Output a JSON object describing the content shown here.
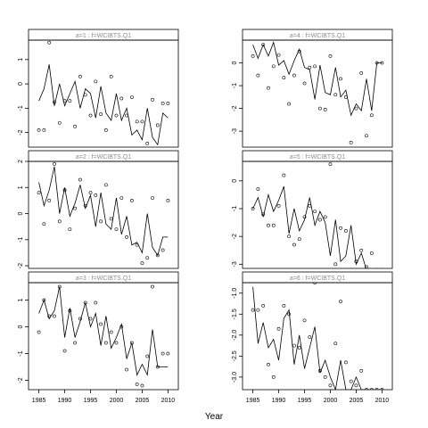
{
  "chart_data": {
    "type": "line",
    "xlabel": "Year",
    "panels": [
      {
        "strip": "a=1  :  f=WCIBTS.Q1",
        "xlim": [
          1983,
          2012
        ],
        "ylim": [
          -2.6,
          1.8
        ],
        "yticks": [
          -2,
          -1,
          0,
          1
        ],
        "ytick_labels": [
          "-2",
          "-1",
          "0",
          "1"
        ],
        "line": {
          "x": [
            1985,
            1986,
            1987,
            1988,
            1989,
            1990,
            1991,
            1992,
            1993,
            1994,
            1995,
            1996,
            1997,
            1998,
            1999,
            2000,
            2001,
            2002,
            2003,
            2004,
            2005,
            2006,
            2007,
            2008,
            2009,
            2010
          ],
          "y": [
            -0.7,
            -0.2,
            0.8,
            -0.9,
            0.0,
            -0.9,
            -0.4,
            0.1,
            -1.0,
            -0.2,
            -0.4,
            -1.4,
            -0.1,
            -1.2,
            -1.5,
            -0.4,
            -1.5,
            -1.0,
            -2.1,
            -1.9,
            -2.3,
            -1.0,
            -2.2,
            -2.5,
            -1.2,
            -1.4
          ]
        },
        "points": {
          "x": [
            1985,
            1986,
            1987,
            1988,
            1989,
            1990,
            1991,
            1992,
            1993,
            1994,
            1995,
            1996,
            1997,
            1998,
            1999,
            2000,
            2001,
            2002,
            2003,
            2004,
            2005,
            2006,
            2007,
            2008,
            2009,
            2010
          ],
          "y": [
            -1.9,
            -1.9,
            1.7,
            -0.75,
            -1.6,
            -0.7,
            -0.7,
            -1.75,
            0.3,
            -0.45,
            -1.3,
            0.1,
            -1.25,
            -1.9,
            0.3,
            -1.3,
            -0.6,
            -1.3,
            -0.55,
            -1.55,
            -1.55,
            -2.45,
            -0.65,
            -1.7,
            -0.8,
            -0.8
          ]
        }
      },
      {
        "strip": "a=4  :  f=WCIBTS.Q1",
        "xlim": [
          1983,
          2012
        ],
        "ylim": [
          -3.7,
          1.0
        ],
        "yticks": [
          -3,
          -2,
          -1,
          0
        ],
        "ytick_labels": [
          "-3",
          "-2",
          "-1",
          "0"
        ],
        "line": {
          "x": [
            1985,
            1986,
            1987,
            1988,
            1989,
            1990,
            1991,
            1992,
            1993,
            1994,
            1995,
            1996,
            1997,
            1998,
            1999,
            2000,
            2001,
            2002,
            2003,
            2004,
            2005,
            2006,
            2007,
            2008,
            2009,
            2010
          ],
          "y": [
            0.8,
            0.2,
            0.8,
            0.3,
            0.9,
            -0.1,
            0.1,
            -0.5,
            0.1,
            0.6,
            -0.2,
            -0.3,
            -1.6,
            -0.1,
            -1.3,
            -1.4,
            -0.2,
            -1.5,
            -1.2,
            -2.3,
            -1.8,
            -2.1,
            -0.7,
            -2.1,
            0.0,
            0.0
          ]
        },
        "points": {
          "x": [
            1985,
            1986,
            1987,
            1988,
            1989,
            1990,
            1991,
            1992,
            1993,
            1994,
            1995,
            1996,
            1997,
            1998,
            1999,
            2000,
            2001,
            2002,
            2003,
            2004,
            2005,
            2006,
            2007,
            2008,
            2009,
            2010
          ],
          "y": [
            0.3,
            -0.55,
            0.8,
            -1.1,
            -0.15,
            0.35,
            -0.65,
            -1.8,
            -0.55,
            0.5,
            -0.9,
            -0.2,
            -0.15,
            -2.0,
            -2.05,
            0.3,
            -1.4,
            -0.7,
            -1.5,
            -3.5,
            -2.0,
            -0.45,
            -3.2,
            -2.3,
            0.0,
            0.0
          ]
        }
      },
      {
        "strip": "a=2  :  f=WCIBTS.Q1",
        "xlim": [
          1983,
          2012
        ],
        "ylim": [
          -2.1,
          2.0
        ],
        "yticks": [
          -2,
          -1,
          0,
          1,
          2
        ],
        "ytick_labels": [
          "-2",
          "-1",
          "0",
          "1",
          "2"
        ],
        "line": {
          "x": [
            1985,
            1986,
            1987,
            1988,
            1989,
            1990,
            1991,
            1992,
            1993,
            1994,
            1995,
            1996,
            1997,
            1998,
            1999,
            2000,
            2001,
            2002,
            2003,
            2004,
            2005,
            2006,
            2007,
            2008,
            2009,
            2010
          ],
          "y": [
            1.2,
            0.3,
            0.9,
            1.8,
            0.0,
            1.0,
            -0.1,
            0.4,
            1.1,
            0.2,
            0.7,
            -0.5,
            0.8,
            -0.4,
            -0.6,
            0.6,
            -0.8,
            -0.1,
            -1.2,
            -1.1,
            -1.5,
            0.0,
            -1.3,
            -1.6,
            -0.9,
            -0.9
          ]
        },
        "points": {
          "x": [
            1985,
            1986,
            1987,
            1988,
            1989,
            1990,
            1991,
            1992,
            1993,
            1994,
            1995,
            1996,
            1997,
            1998,
            1999,
            2000,
            2001,
            2002,
            2003,
            2004,
            2005,
            2006,
            2007,
            2008,
            2009,
            2010
          ],
          "y": [
            0.8,
            -0.4,
            0.5,
            1.9,
            -0.3,
            0.9,
            -0.6,
            0.2,
            1.3,
            0.3,
            0.8,
            0.7,
            -0.3,
            1.1,
            -0.2,
            -0.6,
            0.6,
            -0.9,
            0.5,
            -1.2,
            -1.9,
            -1.7,
            0.6,
            -1.6,
            -1.4,
            0.5
          ]
        }
      },
      {
        "strip": "a=5  :  f=WCIBTS.Q1",
        "xlim": [
          1983,
          2012
        ],
        "ylim": [
          -3.15,
          0.7
        ],
        "yticks": [
          -3,
          -2,
          -1,
          0
        ],
        "ytick_labels": [
          "-3",
          "-2",
          "-1",
          "0"
        ],
        "line": {
          "x": [
            1985,
            1986,
            1987,
            1988,
            1989,
            1990,
            1991,
            1992,
            1993,
            1994,
            1995,
            1996,
            1997,
            1998,
            1999,
            2000,
            2001,
            2002,
            2003,
            2004,
            2005,
            2006,
            2007,
            2008,
            2009,
            2010
          ],
          "y": [
            -1.0,
            -0.6,
            -1.3,
            -0.5,
            -1.1,
            -0.7,
            -0.2,
            -1.9,
            -1.0,
            -1.8,
            -1.4,
            -0.6,
            -1.6,
            -1.1,
            -1.5,
            -2.7,
            -1.4,
            -2.9,
            -2.7,
            -1.6,
            -3.0,
            -2.6,
            -3.2,
            -3.2,
            -3.2,
            -3.2
          ]
        },
        "points": {
          "x": [
            1985,
            1986,
            1987,
            1988,
            1989,
            1990,
            1991,
            1992,
            1993,
            1994,
            1995,
            1996,
            1997,
            1998,
            1999,
            2000,
            2001,
            2002,
            2003,
            2004,
            2005,
            2006,
            2007,
            2008,
            2009,
            2010
          ],
          "y": [
            -1.0,
            -0.3,
            -1.2,
            -1.6,
            -1.6,
            -0.9,
            0.2,
            -2.0,
            -2.3,
            -2.1,
            -1.3,
            -0.9,
            -1.1,
            -1.4,
            -1.3,
            0.6,
            -3.0,
            -1.7,
            -1.8,
            -3.2,
            -2.9,
            -2.5,
            -3.1,
            -2.6,
            -3.2,
            -3.2
          ]
        }
      },
      {
        "strip": "a=3  :  f=WCIBTS.Q1",
        "xlim": [
          1983,
          2012
        ],
        "ylim": [
          -2.35,
          1.65
        ],
        "yticks": [
          -2,
          -1,
          0,
          1
        ],
        "ytick_labels": [
          "-2",
          "-1",
          "0",
          "1"
        ],
        "line": {
          "x": [
            1985,
            1986,
            1987,
            1988,
            1989,
            1990,
            1991,
            1992,
            1993,
            1994,
            1995,
            1996,
            1997,
            1998,
            1999,
            2000,
            2001,
            2002,
            2003,
            2004,
            2005,
            2006,
            2007,
            2008,
            2009,
            2010
          ],
          "y": [
            0.5,
            1.0,
            0.3,
            0.6,
            1.5,
            -0.4,
            0.7,
            -0.4,
            0.2,
            0.9,
            0.0,
            0.5,
            -0.7,
            0.4,
            -0.8,
            -0.4,
            0.1,
            -1.2,
            -0.6,
            -1.8,
            -1.4,
            -1.8,
            -0.1,
            -1.5,
            -1.5,
            -1.5
          ]
        },
        "points": {
          "x": [
            1985,
            1986,
            1987,
            1988,
            1989,
            1990,
            1991,
            1992,
            1993,
            1994,
            1995,
            1996,
            1997,
            1998,
            1999,
            2000,
            2001,
            2002,
            2003,
            2004,
            2005,
            2006,
            2007,
            2008,
            2009,
            2010
          ],
          "y": [
            -0.2,
            1.0,
            0.4,
            0.4,
            1.5,
            -0.9,
            0.6,
            -0.6,
            0.3,
            0.9,
            0.3,
            0.9,
            0.1,
            -0.6,
            -0.2,
            -0.6,
            0.0,
            -1.6,
            -0.6,
            -2.15,
            -2.2,
            -1.1,
            1.5,
            -1.5,
            -1.0,
            -1.0
          ]
        }
      },
      {
        "strip": "a=6  :  f=WCIBTS.Q1",
        "xlim": [
          1983,
          2012
        ],
        "ylim": [
          -3.3,
          -0.75
        ],
        "yticks": [
          -3.0,
          -2.5,
          -2.0,
          -1.5,
          -1.0
        ],
        "ytick_labels": [
          "-3.0",
          "-2.5",
          "-2.0",
          "-1.5",
          "-1.0"
        ],
        "line": {
          "x": [
            1985,
            1986,
            1987,
            1988,
            1989,
            1990,
            1991,
            1992,
            1993,
            1994,
            1995,
            1996,
            1997,
            1998,
            1999,
            2000,
            2001,
            2002,
            2003,
            2004,
            2005,
            2006,
            2007,
            2008,
            2009,
            2010
          ],
          "y": [
            -0.85,
            -2.2,
            -1.7,
            -2.3,
            -2.1,
            -2.6,
            -1.6,
            -1.4,
            -2.7,
            -2.0,
            -2.8,
            -2.3,
            -1.8,
            -2.9,
            -2.6,
            -3.0,
            -3.3,
            -2.6,
            -3.3,
            -3.3,
            -3.0,
            -3.3,
            -3.3,
            -3.3,
            -3.3,
            -3.3
          ]
        },
        "points": {
          "x": [
            1985,
            1986,
            1987,
            1988,
            1989,
            1990,
            1991,
            1992,
            1993,
            1994,
            1995,
            1996,
            1997,
            1998,
            1999,
            2000,
            2001,
            2002,
            2003,
            2004,
            2005,
            2006,
            2007,
            2008,
            2009,
            2010
          ],
          "y": [
            -1.4,
            -1.4,
            -1.3,
            -2.7,
            -3.0,
            -1.85,
            -1.3,
            -1.5,
            -2.25,
            -2.3,
            -1.65,
            -2.05,
            -0.75,
            -2.85,
            -3.0,
            -3.2,
            -2.2,
            -1.2,
            -2.65,
            -3.1,
            -3.2,
            -2.85,
            -3.3,
            -3.3,
            -3.3,
            -3.3
          ]
        }
      }
    ],
    "xticks": [
      1985,
      1990,
      1995,
      2000,
      2005,
      2010
    ],
    "xtick_labels": [
      "1985",
      "1990",
      "1995",
      "2000",
      "2005",
      "2010"
    ]
  }
}
